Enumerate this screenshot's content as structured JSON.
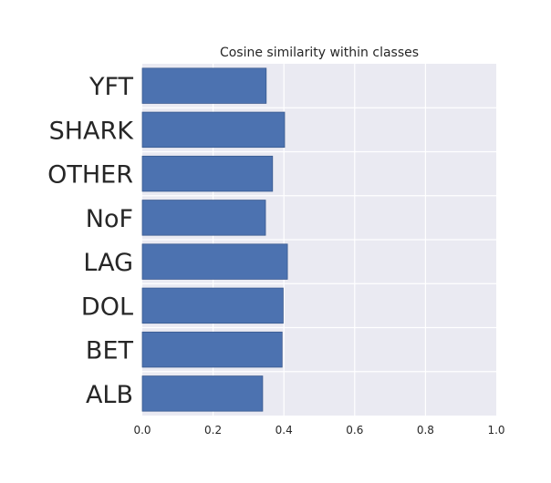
{
  "chart_data": {
    "type": "bar",
    "orientation": "horizontal",
    "title": "Cosine similarity within classes",
    "categories": [
      "ALB",
      "BET",
      "DOL",
      "LAG",
      "NoF",
      "OTHER",
      "SHARK",
      "YFT"
    ],
    "values": [
      0.34,
      0.395,
      0.398,
      0.41,
      0.348,
      0.368,
      0.402,
      0.35
    ],
    "xlim": [
      0,
      1
    ],
    "xticks": [
      "0.0",
      "0.2",
      "0.4",
      "0.6",
      "0.8",
      "1.0"
    ],
    "xlabel": "",
    "ylabel": "",
    "grid": true,
    "colors": {
      "bar": "#4c72b0",
      "bar_edge": "#3a5a8f",
      "plot_background": "#eaeaf2",
      "grid": "#ffffff",
      "text": "#262626"
    }
  }
}
